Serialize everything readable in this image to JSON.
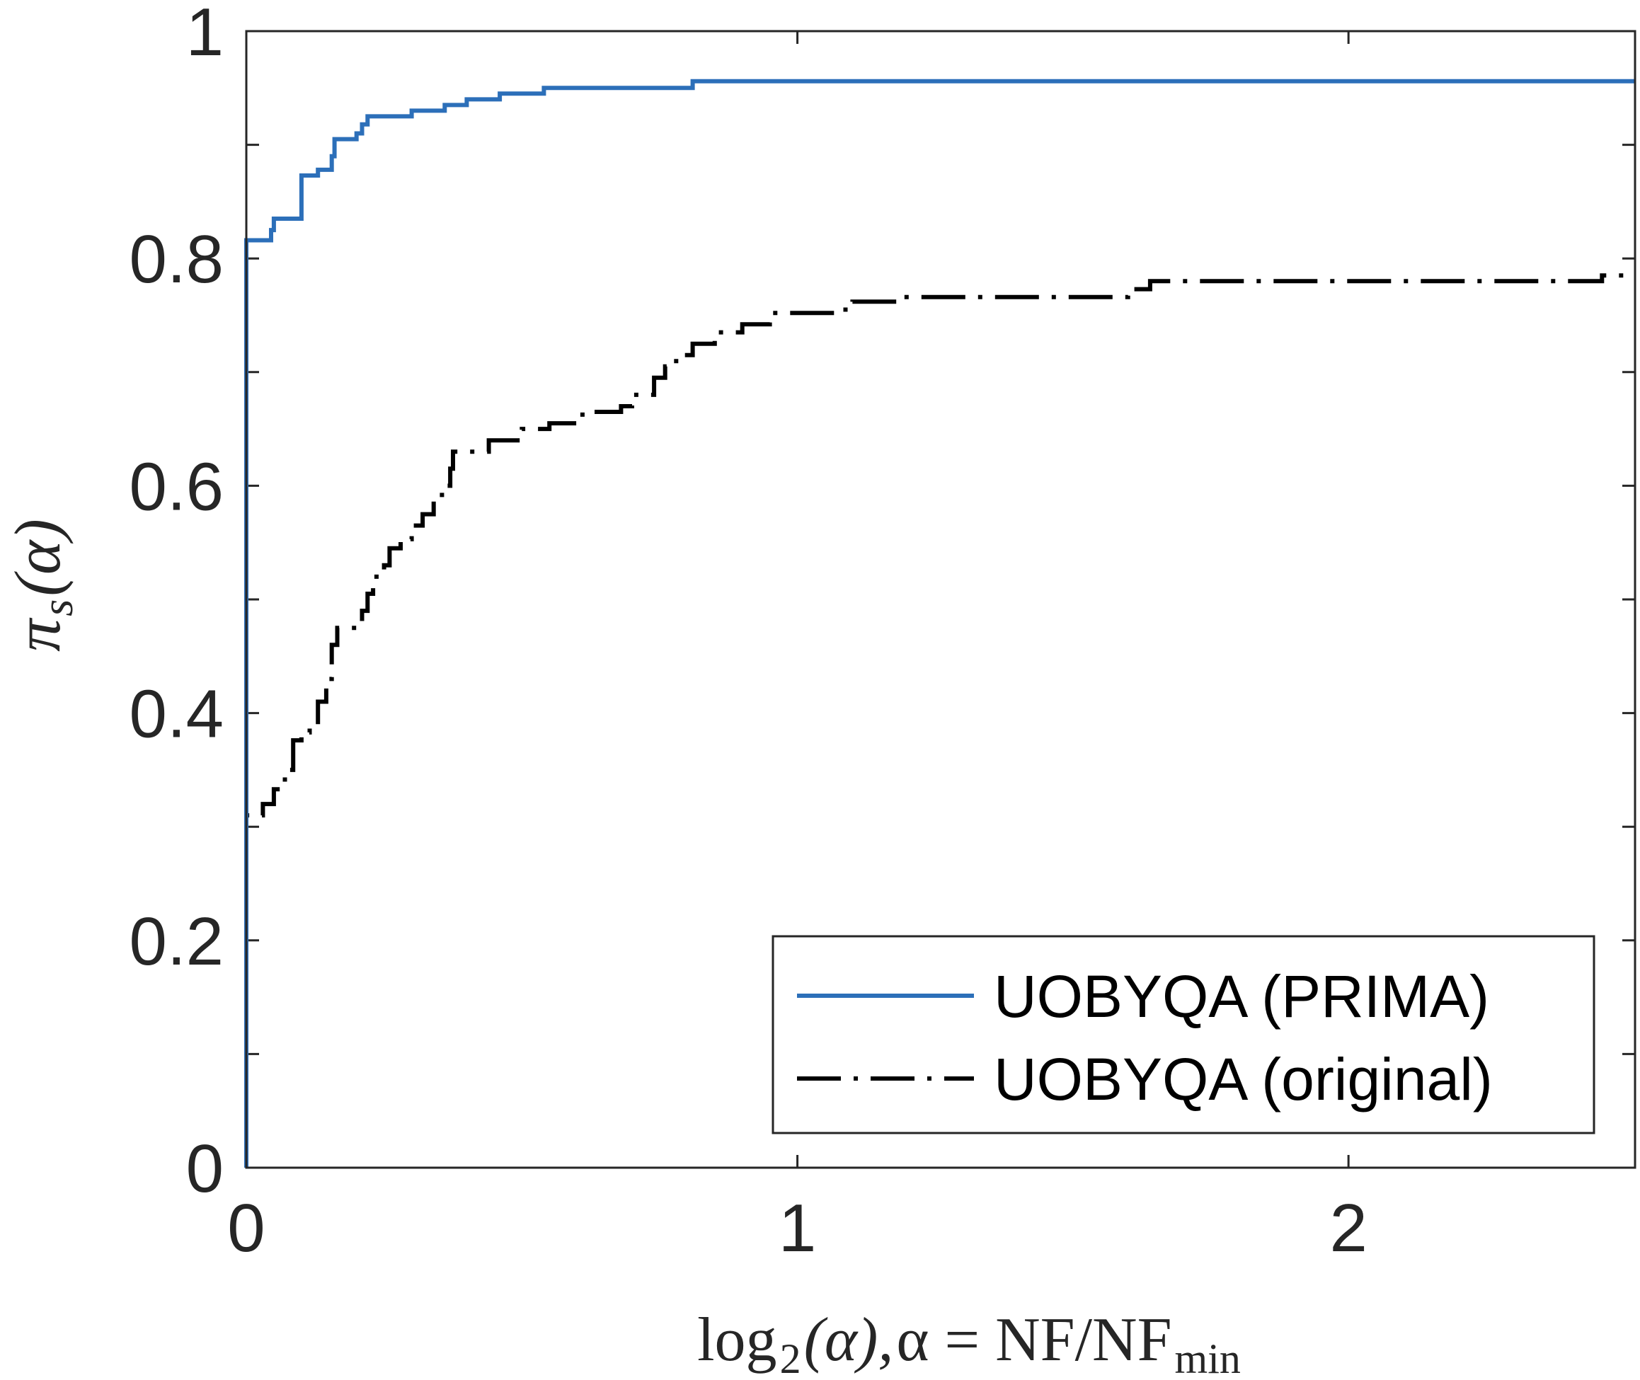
{
  "chart_data": {
    "type": "line",
    "title": "",
    "xlabel": {
      "main": "log",
      "sub": "2",
      "alpha_part": "(α),",
      "eq": "α = NF/NF",
      "eq_sub": "min"
    },
    "ylabel": {
      "main": "π",
      "sub": "s",
      "arg": "(α)"
    },
    "xlim": [
      0,
      2.52
    ],
    "ylim": [
      0,
      1
    ],
    "x_ticks": [
      0,
      1,
      2
    ],
    "x_tick_labels": [
      "0",
      "1",
      "2"
    ],
    "y_ticks": [
      0,
      0.1,
      0.2,
      0.3,
      0.4,
      0.5,
      0.6,
      0.7,
      0.8,
      0.9,
      1.0
    ],
    "y_tick_labels": [
      "0",
      "",
      "0.2",
      "",
      "0.4",
      "",
      "0.6",
      "",
      "0.8",
      "",
      "1"
    ],
    "grid": false,
    "legend_position": "bottom-right",
    "series": [
      {
        "name": "UOBYQA (PRIMA)",
        "color": "#2c6fb9",
        "style": "solid",
        "points": [
          [
            0,
            0
          ],
          [
            0,
            0.816
          ],
          [
            0.045,
            0.816
          ],
          [
            0.045,
            0.825
          ],
          [
            0.05,
            0.825
          ],
          [
            0.05,
            0.835
          ],
          [
            0.1,
            0.835
          ],
          [
            0.1,
            0.855
          ],
          [
            0.1,
            0.873
          ],
          [
            0.13,
            0.873
          ],
          [
            0.13,
            0.878
          ],
          [
            0.155,
            0.878
          ],
          [
            0.155,
            0.89
          ],
          [
            0.16,
            0.89
          ],
          [
            0.16,
            0.905
          ],
          [
            0.2,
            0.905
          ],
          [
            0.2,
            0.91
          ],
          [
            0.21,
            0.91
          ],
          [
            0.21,
            0.918
          ],
          [
            0.22,
            0.918
          ],
          [
            0.22,
            0.925
          ],
          [
            0.3,
            0.925
          ],
          [
            0.3,
            0.93
          ],
          [
            0.36,
            0.93
          ],
          [
            0.36,
            0.935
          ],
          [
            0.4,
            0.935
          ],
          [
            0.4,
            0.94
          ],
          [
            0.46,
            0.94
          ],
          [
            0.46,
            0.945
          ],
          [
            0.54,
            0.945
          ],
          [
            0.54,
            0.95
          ],
          [
            0.81,
            0.95
          ],
          [
            0.81,
            0.956
          ],
          [
            2.52,
            0.956
          ]
        ]
      },
      {
        "name": "UOBYQA (original)",
        "color": "#000000",
        "style": "dashdot",
        "points": [
          [
            0,
            0
          ],
          [
            0,
            0.3
          ],
          [
            0,
            0.31
          ],
          [
            0.03,
            0.31
          ],
          [
            0.03,
            0.32
          ],
          [
            0.05,
            0.32
          ],
          [
            0.05,
            0.333
          ],
          [
            0.07,
            0.333
          ],
          [
            0.07,
            0.35
          ],
          [
            0.085,
            0.35
          ],
          [
            0.085,
            0.376
          ],
          [
            0.1,
            0.376
          ],
          [
            0.1,
            0.383
          ],
          [
            0.115,
            0.383
          ],
          [
            0.115,
            0.39
          ],
          [
            0.13,
            0.39
          ],
          [
            0.13,
            0.41
          ],
          [
            0.145,
            0.41
          ],
          [
            0.145,
            0.43
          ],
          [
            0.155,
            0.43
          ],
          [
            0.155,
            0.46
          ],
          [
            0.165,
            0.46
          ],
          [
            0.165,
            0.475
          ],
          [
            0.2,
            0.475
          ],
          [
            0.2,
            0.48
          ],
          [
            0.21,
            0.48
          ],
          [
            0.21,
            0.49
          ],
          [
            0.22,
            0.49
          ],
          [
            0.22,
            0.505
          ],
          [
            0.23,
            0.505
          ],
          [
            0.23,
            0.52
          ],
          [
            0.25,
            0.52
          ],
          [
            0.25,
            0.53
          ],
          [
            0.26,
            0.53
          ],
          [
            0.26,
            0.545
          ],
          [
            0.28,
            0.545
          ],
          [
            0.28,
            0.553
          ],
          [
            0.3,
            0.553
          ],
          [
            0.3,
            0.565
          ],
          [
            0.32,
            0.565
          ],
          [
            0.32,
            0.575
          ],
          [
            0.34,
            0.575
          ],
          [
            0.34,
            0.59
          ],
          [
            0.355,
            0.59
          ],
          [
            0.355,
            0.6
          ],
          [
            0.37,
            0.6
          ],
          [
            0.37,
            0.615
          ],
          [
            0.375,
            0.615
          ],
          [
            0.375,
            0.63
          ],
          [
            0.44,
            0.63
          ],
          [
            0.44,
            0.64
          ],
          [
            0.5,
            0.64
          ],
          [
            0.5,
            0.65
          ],
          [
            0.55,
            0.65
          ],
          [
            0.55,
            0.655
          ],
          [
            0.61,
            0.655
          ],
          [
            0.61,
            0.665
          ],
          [
            0.68,
            0.665
          ],
          [
            0.68,
            0.67
          ],
          [
            0.7,
            0.67
          ],
          [
            0.7,
            0.68
          ],
          [
            0.74,
            0.68
          ],
          [
            0.74,
            0.695
          ],
          [
            0.76,
            0.695
          ],
          [
            0.76,
            0.705
          ],
          [
            0.78,
            0.705
          ],
          [
            0.78,
            0.715
          ],
          [
            0.81,
            0.715
          ],
          [
            0.81,
            0.725
          ],
          [
            0.85,
            0.725
          ],
          [
            0.85,
            0.735
          ],
          [
            0.9,
            0.735
          ],
          [
            0.9,
            0.742
          ],
          [
            0.95,
            0.742
          ],
          [
            0.95,
            0.752
          ],
          [
            1.08,
            0.752
          ],
          [
            1.08,
            0.755
          ],
          [
            1.1,
            0.755
          ],
          [
            1.1,
            0.762
          ],
          [
            1.18,
            0.762
          ],
          [
            1.18,
            0.766
          ],
          [
            1.6,
            0.766
          ],
          [
            1.6,
            0.773
          ],
          [
            1.64,
            0.773
          ],
          [
            1.64,
            0.78
          ],
          [
            2.46,
            0.78
          ],
          [
            2.46,
            0.785
          ],
          [
            2.52,
            0.785
          ]
        ]
      }
    ]
  }
}
